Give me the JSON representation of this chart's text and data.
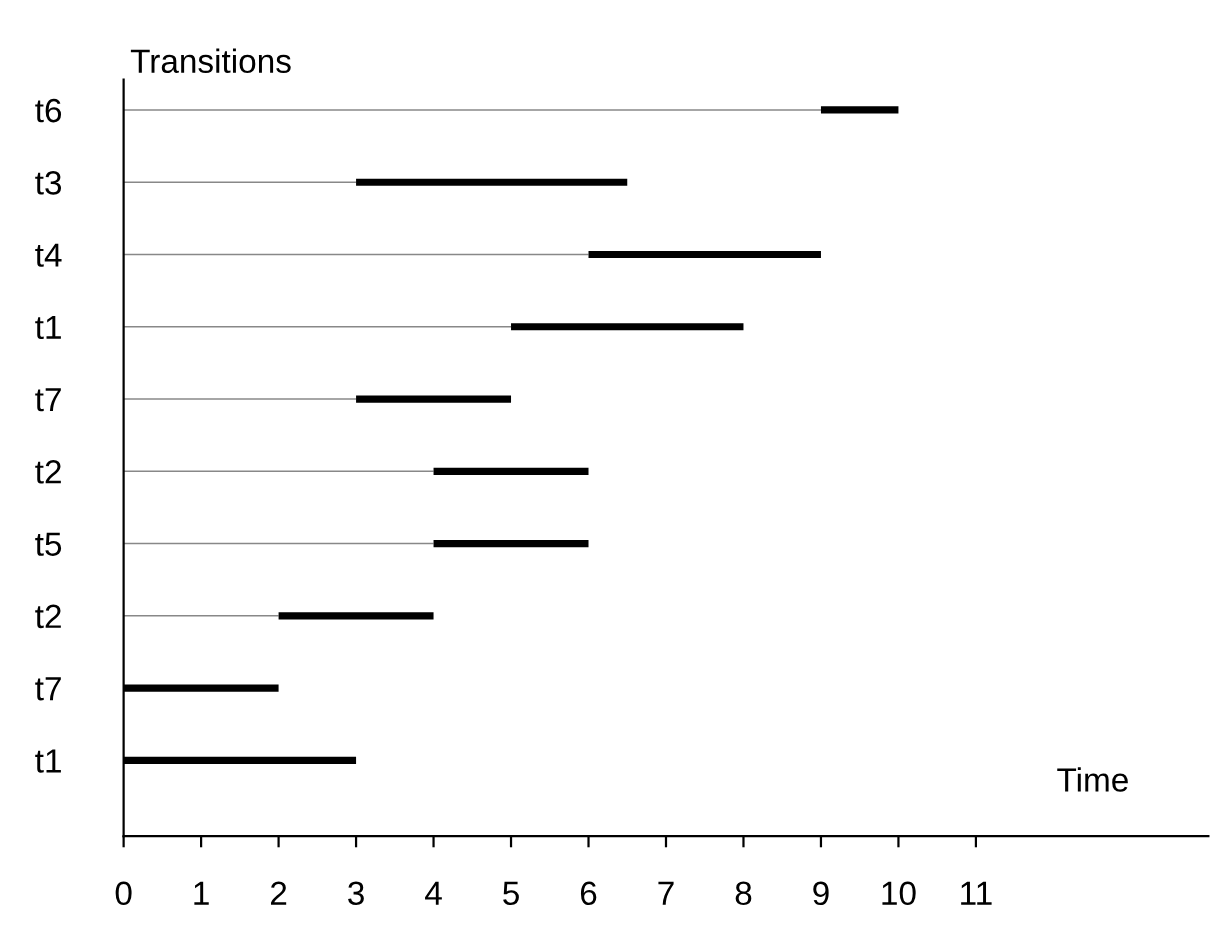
{
  "chart_data": {
    "type": "bar",
    "orientation": "horizontal",
    "stacked": true,
    "xlabel": "Time",
    "ylabel": "Transitions",
    "categories": [
      "t6",
      "t3",
      "t4",
      "t1",
      "t7",
      "t2",
      "t5",
      "t2",
      "t7",
      "t1"
    ],
    "series": [
      {
        "color": "#888888",
        "values": [
          9,
          3,
          6,
          5,
          3,
          4,
          4,
          2,
          0,
          0
        ]
      },
      {
        "color": "#000000",
        "values": [
          1,
          3.5,
          3,
          3,
          2,
          2,
          2,
          2,
          2,
          3
        ]
      }
    ],
    "xlim": [
      0,
      14
    ],
    "xticks": [
      0,
      1,
      2,
      3,
      4,
      5,
      6,
      7,
      8,
      9,
      10,
      11
    ],
    "grid": false,
    "legend": false
  }
}
